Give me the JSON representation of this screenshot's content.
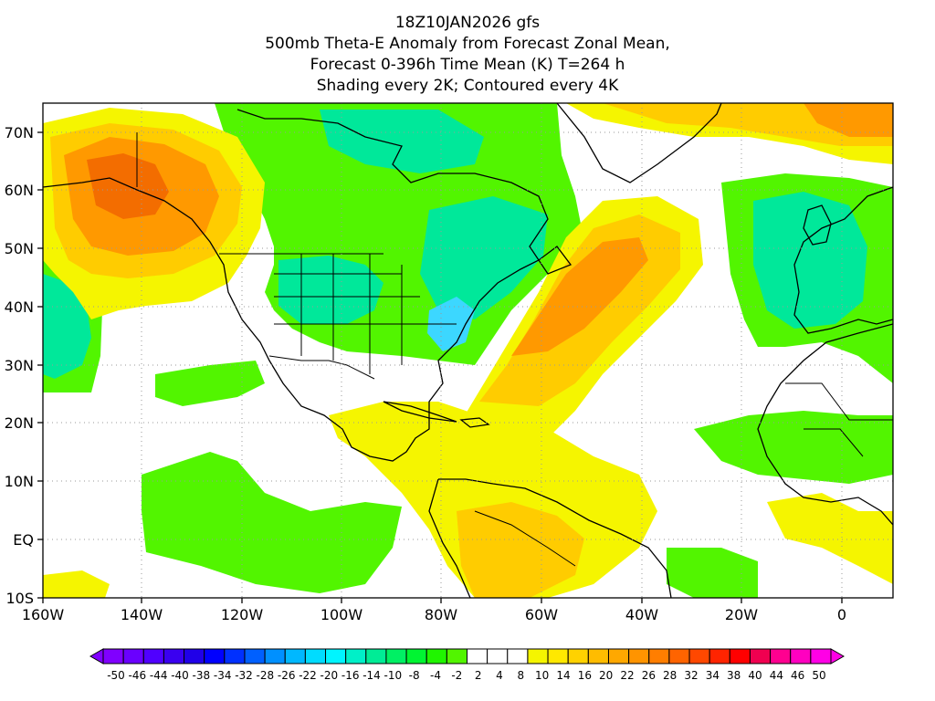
{
  "title": {
    "line1": "18Z10JAN2026 gfs",
    "line2": "500mb Theta-E Anomaly from Forecast Zonal Mean,",
    "line3": "Forecast 0-396h Time Mean (K) T=264 h",
    "line4": "Shading every 2K; Contoured every 4K"
  },
  "map": {
    "lon_labels": [
      "160W",
      "140W",
      "120W",
      "100W",
      "80W",
      "60W",
      "40W",
      "20W",
      "0"
    ],
    "lat_labels": [
      "70N",
      "60N",
      "50N",
      "40N",
      "30N",
      "20N",
      "10N",
      "EQ",
      "10S"
    ],
    "colors": {
      "green": "#52f500",
      "teal": "#00e89a",
      "light_blue": "#3cd7ff",
      "yellow": "#f5f500",
      "gold": "#ffcc00",
      "orange": "#ff9900",
      "dark_orange": "#f36d00"
    }
  },
  "colorbar": {
    "labels": [
      "-50",
      "-46",
      "-44",
      "-40",
      "-38",
      "-34",
      "-32",
      "-28",
      "-26",
      "-22",
      "-20",
      "-16",
      "-14",
      "-10",
      "-8",
      "-4",
      "-2",
      "2",
      "4",
      "8",
      "10",
      "14",
      "16",
      "20",
      "22",
      "26",
      "28",
      "32",
      "34",
      "38",
      "40",
      "44",
      "46",
      "50"
    ],
    "colors": [
      "#8000ff",
      "#6a00ff",
      "#5000ff",
      "#3a00f0",
      "#2000e8",
      "#0000ff",
      "#0030ff",
      "#0060ff",
      "#0090ff",
      "#00b8ff",
      "#00dcff",
      "#00f5ff",
      "#00f0c8",
      "#00ec96",
      "#00f064",
      "#00f532",
      "#20f500",
      "#52f500",
      "#ffffff",
      "#ffffff",
      "#ffffff",
      "#f5f500",
      "#ffe800",
      "#ffd200",
      "#ffbc00",
      "#ffa800",
      "#ff9400",
      "#ff7e00",
      "#ff6400",
      "#ff4800",
      "#ff2400",
      "#ff0000",
      "#f00050",
      "#ff0090",
      "#ff00c0",
      "#ff00e6"
    ]
  }
}
